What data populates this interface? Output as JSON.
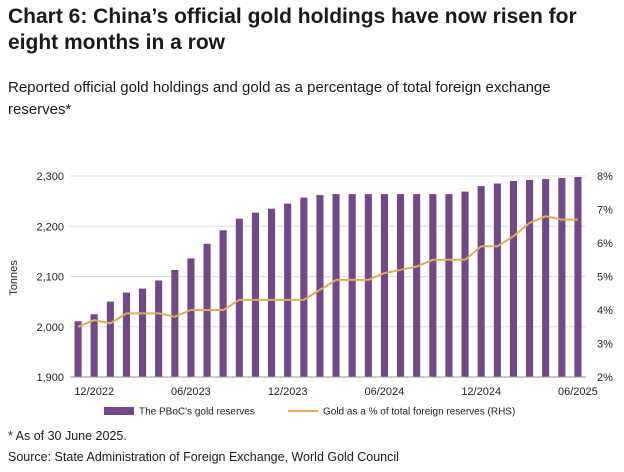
{
  "header": {
    "title": "Chart 6: China’s official gold holdings have now risen for eight months in a row",
    "subtitle": "Reported official gold holdings and gold as a percentage of total foreign exchange reserves*"
  },
  "footer": {
    "footnote": "* As of 30 June 2025.",
    "source": "Source: State Administration of Foreign Exchange, World Gold Council"
  },
  "chart_data": {
    "type": "bar",
    "ylabel": "Tonnes",
    "ylim": [
      1900,
      2300
    ],
    "y_ticks": [
      "1,900",
      "2,000",
      "2,100",
      "2,200",
      "2,300"
    ],
    "y2lim": [
      2,
      8
    ],
    "y2_ticks": [
      "2%",
      "3%",
      "4%",
      "5%",
      "6%",
      "7%",
      "8%"
    ],
    "x_tick_labels": [
      "12/2022",
      "06/2023",
      "12/2023",
      "06/2024",
      "12/2024",
      "06/2025"
    ],
    "grid": "horizontal",
    "legend_position": "bottom",
    "x": [
      "2022-11",
      "2022-12",
      "2023-01",
      "2023-02",
      "2023-03",
      "2023-04",
      "2023-05",
      "2023-06",
      "2023-07",
      "2023-08",
      "2023-09",
      "2023-10",
      "2023-11",
      "2023-12",
      "2024-01",
      "2024-02",
      "2024-03",
      "2024-04",
      "2024-05",
      "2024-06",
      "2024-07",
      "2024-08",
      "2024-09",
      "2024-10",
      "2024-11",
      "2024-12",
      "2025-01",
      "2025-02",
      "2025-03",
      "2025-04",
      "2025-05",
      "2025-06"
    ],
    "series": [
      {
        "name": "The PBoC's gold reserves",
        "kind": "bar",
        "axis": "left",
        "color": "#74468e",
        "values": [
          2011,
          2025,
          2050,
          2068,
          2076,
          2092,
          2113,
          2136,
          2165,
          2192,
          2215,
          2227,
          2235,
          2245,
          2257,
          2262,
          2264,
          2264,
          2264,
          2264,
          2264,
          2264,
          2264,
          2264,
          2269,
          2280,
          2285,
          2290,
          2292,
          2294,
          2296,
          2298
        ]
      },
      {
        "name": "Gold as a % of total foreign reserves (RHS)",
        "kind": "line",
        "axis": "right",
        "color": "#e3aa5c",
        "values": [
          3.5,
          3.7,
          3.6,
          3.9,
          3.9,
          3.9,
          3.8,
          4.0,
          4.0,
          4.0,
          4.3,
          4.3,
          4.3,
          4.3,
          4.3,
          4.6,
          4.9,
          4.9,
          4.9,
          5.1,
          5.2,
          5.3,
          5.5,
          5.5,
          5.5,
          5.9,
          5.9,
          6.2,
          6.6,
          6.8,
          6.7,
          6.7
        ]
      }
    ]
  }
}
